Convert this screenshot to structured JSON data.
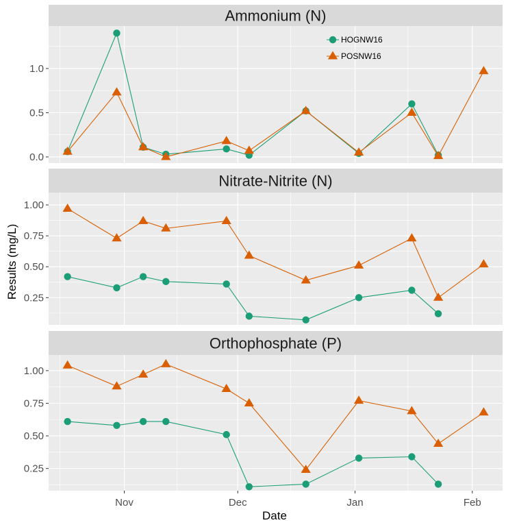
{
  "chart_data": {
    "type": "line",
    "xlabel": "Date",
    "ylabel": "Results (mg/L)",
    "x_ticks": [
      "Nov",
      "Dec",
      "Jan",
      "Feb"
    ],
    "legend": {
      "position": "top-right inside first panel",
      "entries": [
        {
          "name": "HOGNW16",
          "color": "#1b9e77",
          "marker": "circle"
        },
        {
          "name": "POSNW16",
          "color": "#d95f02",
          "marker": "triangle"
        }
      ]
    },
    "colors": {
      "HOGNW16": "#1b9e77",
      "POSNW16": "#d95f02",
      "panel_bg": "#ebebeb",
      "strip_bg": "#d9d9d9",
      "grid": "#ffffff"
    },
    "facets": [
      {
        "title": "Ammonium (N)",
        "ylim": [
          -0.07,
          1.48
        ],
        "yticks": [
          0.0,
          0.5,
          1.0
        ],
        "ytick_labels": [
          "0.0",
          "0.5",
          "1.0"
        ],
        "series": [
          {
            "name": "HOGNW16",
            "points": [
              [
                "2016-10-17",
                0.06
              ],
              [
                "2016-10-30",
                1.4
              ],
              [
                "2016-11-06",
                0.11
              ],
              [
                "2016-11-12",
                0.03
              ],
              [
                "2016-11-28",
                0.09
              ],
              [
                "2016-12-04",
                0.02
              ],
              [
                "2016-12-19",
                0.52
              ],
              [
                "2017-01-02",
                0.04
              ],
              [
                "2017-01-16",
                0.6
              ],
              [
                "2017-01-23",
                0.02
              ]
            ]
          },
          {
            "name": "POSNW16",
            "points": [
              [
                "2016-10-17",
                0.06
              ],
              [
                "2016-10-30",
                0.73
              ],
              [
                "2016-11-06",
                0.11
              ],
              [
                "2016-11-12",
                0.0
              ],
              [
                "2016-11-28",
                0.18
              ],
              [
                "2016-12-04",
                0.07
              ],
              [
                "2016-12-19",
                0.52
              ],
              [
                "2017-01-02",
                0.05
              ],
              [
                "2017-01-16",
                0.5
              ],
              [
                "2017-01-23",
                0.01
              ],
              [
                "2017-02-04",
                0.97
              ]
            ]
          }
        ]
      },
      {
        "title": "Nitrate-Nitrite (N)",
        "ylim": [
          0.03,
          1.1
        ],
        "yticks": [
          0.25,
          0.5,
          0.75,
          1.0
        ],
        "ytick_labels": [
          "0.25",
          "0.50",
          "0.75",
          "1.00"
        ],
        "series": [
          {
            "name": "HOGNW16",
            "points": [
              [
                "2016-10-17",
                0.42
              ],
              [
                "2016-10-30",
                0.33
              ],
              [
                "2016-11-06",
                0.42
              ],
              [
                "2016-11-12",
                0.38
              ],
              [
                "2016-11-28",
                0.36
              ],
              [
                "2016-12-04",
                0.1
              ],
              [
                "2016-12-19",
                0.07
              ],
              [
                "2017-01-02",
                0.25
              ],
              [
                "2017-01-16",
                0.31
              ],
              [
                "2017-01-23",
                0.12
              ]
            ]
          },
          {
            "name": "POSNW16",
            "points": [
              [
                "2016-10-17",
                0.97
              ],
              [
                "2016-10-30",
                0.73
              ],
              [
                "2016-11-06",
                0.87
              ],
              [
                "2016-11-12",
                0.81
              ],
              [
                "2016-11-28",
                0.87
              ],
              [
                "2016-12-04",
                0.59
              ],
              [
                "2016-12-19",
                0.39
              ],
              [
                "2017-01-02",
                0.51
              ],
              [
                "2017-01-16",
                0.73
              ],
              [
                "2017-01-23",
                0.25
              ],
              [
                "2017-02-04",
                0.52
              ]
            ]
          }
        ]
      },
      {
        "title": "Orthophosphate (P)",
        "ylim": [
          0.08,
          1.12
        ],
        "yticks": [
          0.25,
          0.5,
          0.75,
          1.0
        ],
        "ytick_labels": [
          "0.25",
          "0.50",
          "0.75",
          "1.00"
        ],
        "series": [
          {
            "name": "HOGNW16",
            "points": [
              [
                "2016-10-17",
                0.61
              ],
              [
                "2016-10-30",
                0.58
              ],
              [
                "2016-11-06",
                0.61
              ],
              [
                "2016-11-12",
                0.61
              ],
              [
                "2016-11-28",
                0.51
              ],
              [
                "2016-12-04",
                0.11
              ],
              [
                "2016-12-19",
                0.13
              ],
              [
                "2017-01-02",
                0.33
              ],
              [
                "2017-01-16",
                0.34
              ],
              [
                "2017-01-23",
                0.13
              ]
            ]
          },
          {
            "name": "POSNW16",
            "points": [
              [
                "2016-10-17",
                1.04
              ],
              [
                "2016-10-30",
                0.88
              ],
              [
                "2016-11-06",
                0.97
              ],
              [
                "2016-11-12",
                1.05
              ],
              [
                "2016-11-28",
                0.86
              ],
              [
                "2016-12-04",
                0.75
              ],
              [
                "2016-12-19",
                0.24
              ],
              [
                "2017-01-02",
                0.77
              ],
              [
                "2017-01-16",
                0.69
              ],
              [
                "2017-01-23",
                0.44
              ],
              [
                "2017-02-04",
                0.68
              ]
            ]
          }
        ]
      }
    ]
  }
}
